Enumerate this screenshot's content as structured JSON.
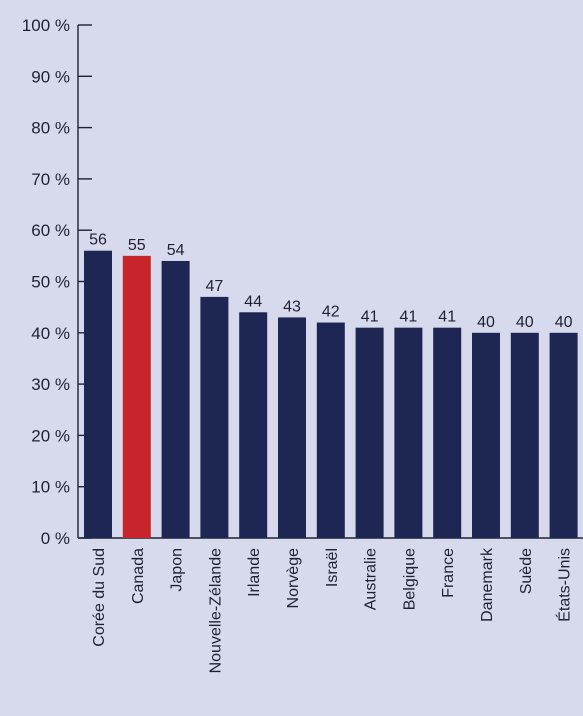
{
  "chart_data": {
    "type": "bar",
    "categories": [
      "Corée du Sud",
      "Canada",
      "Japon",
      "Nouvelle-Zélande",
      "Irlande",
      "Norvège",
      "Israël",
      "Australie",
      "Belgique",
      "France",
      "Danemark",
      "Suède",
      "États-Unis"
    ],
    "values": [
      56,
      55,
      54,
      47,
      44,
      43,
      42,
      41,
      41,
      41,
      40,
      40,
      40
    ],
    "value_labels": [
      "56",
      "55",
      "54",
      "47",
      "44",
      "43",
      "42",
      "41",
      "41",
      "41",
      "40",
      "40",
      "40"
    ],
    "highlight_index": 1,
    "ylim": [
      0,
      100
    ],
    "y_ticks": [
      0,
      10,
      20,
      30,
      40,
      50,
      60,
      70,
      80,
      90,
      100
    ],
    "y_tick_labels": [
      "0 %",
      "10 %",
      "20 %",
      "30 %",
      "40 %",
      "50 %",
      "60 %",
      "70 %",
      "80 %",
      "90 %",
      "100 %"
    ],
    "title": "",
    "xlabel": "",
    "ylabel": "",
    "grid": false
  },
  "colors": {
    "background": "#d7d9ec",
    "bar": "#1e2654",
    "highlight_bar": "#c8242b",
    "axis": "#1f2233"
  }
}
